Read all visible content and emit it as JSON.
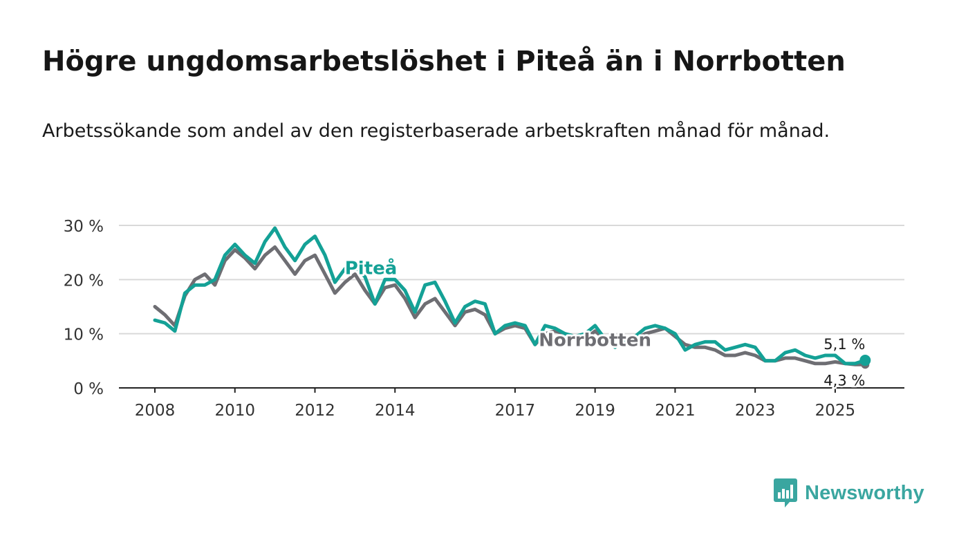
{
  "title": "Högre ungdomsarbetslöshet i Piteå än i Norrbotten",
  "subtitle": "Arbetssökande som andel av den registerbaserade arbetskraften månad för månad.",
  "brand": {
    "name": "Newsworthy",
    "color": "#3aa6a0"
  },
  "chart_data": {
    "type": "line",
    "title": "Högre ungdomsarbetslöshet i Piteå än i Norrbotten",
    "subtitle": "Arbetssökande som andel av den registerbaserade arbetskraften månad för månad.",
    "xlabel": "",
    "ylabel": "",
    "ylim": [
      0,
      30
    ],
    "xlim": [
      2008,
      2025.9
    ],
    "grid": true,
    "y_ticks": [
      0,
      10,
      20,
      30
    ],
    "y_tick_labels": [
      "0 %",
      "10 %",
      "20 %",
      "30 %"
    ],
    "x_ticks": [
      2008,
      2010,
      2012,
      2014,
      2017,
      2019,
      2021,
      2023,
      2025
    ],
    "x_tick_labels": [
      "2008",
      "2010",
      "2012",
      "2014",
      "2017",
      "2019",
      "2021",
      "2023",
      "2025"
    ],
    "series": [
      {
        "name": "Norrbotten",
        "color": "#6e6e73",
        "x": [
          2008.0,
          2008.25,
          2008.5,
          2008.75,
          2009.0,
          2009.25,
          2009.5,
          2009.75,
          2010.0,
          2010.25,
          2010.5,
          2010.75,
          2011.0,
          2011.25,
          2011.5,
          2011.75,
          2012.0,
          2012.25,
          2012.5,
          2012.75,
          2013.0,
          2013.25,
          2013.5,
          2013.75,
          2014.0,
          2014.25,
          2014.5,
          2014.75,
          2015.0,
          2015.25,
          2015.5,
          2015.75,
          2016.0,
          2016.25,
          2016.5,
          2016.75,
          2017.0,
          2017.25,
          2017.5,
          2017.75,
          2018.0,
          2018.25,
          2018.5,
          2018.75,
          2019.0,
          2019.25,
          2019.5,
          2019.75,
          2020.0,
          2020.25,
          2020.5,
          2020.75,
          2021.0,
          2021.25,
          2021.5,
          2021.75,
          2022.0,
          2022.25,
          2022.5,
          2022.75,
          2023.0,
          2023.25,
          2023.5,
          2023.75,
          2024.0,
          2024.25,
          2024.5,
          2024.75,
          2025.0,
          2025.25,
          2025.5,
          2025.75
        ],
        "values": [
          15.0,
          13.5,
          11.5,
          17.0,
          20.0,
          21.0,
          19.0,
          23.5,
          25.5,
          24.0,
          22.0,
          24.5,
          26.0,
          23.5,
          21.0,
          23.5,
          24.5,
          21.0,
          17.5,
          19.5,
          21.0,
          18.0,
          15.5,
          18.5,
          19.0,
          16.5,
          13.0,
          15.5,
          16.5,
          14.0,
          11.5,
          14.0,
          14.5,
          13.5,
          10.0,
          11.0,
          11.5,
          11.0,
          8.0,
          10.0,
          10.5,
          10.0,
          9.5,
          9.0,
          10.5,
          9.0,
          8.0,
          8.5,
          9.0,
          10.0,
          10.5,
          11.0,
          9.5,
          8.0,
          7.5,
          7.5,
          7.0,
          6.0,
          6.0,
          6.5,
          6.0,
          5.0,
          5.0,
          5.5,
          5.5,
          5.0,
          4.5,
          4.5,
          4.8,
          4.5,
          4.3,
          4.3
        ]
      },
      {
        "name": "Piteå",
        "color": "#14a196",
        "x": [
          2008.0,
          2008.25,
          2008.5,
          2008.75,
          2009.0,
          2009.25,
          2009.5,
          2009.75,
          2010.0,
          2010.25,
          2010.5,
          2010.75,
          2011.0,
          2011.25,
          2011.5,
          2011.75,
          2012.0,
          2012.25,
          2012.5,
          2012.75,
          2013.0,
          2013.25,
          2013.5,
          2013.75,
          2014.0,
          2014.25,
          2014.5,
          2014.75,
          2015.0,
          2015.25,
          2015.5,
          2015.75,
          2016.0,
          2016.25,
          2016.5,
          2016.75,
          2017.0,
          2017.25,
          2017.5,
          2017.75,
          2018.0,
          2018.25,
          2018.5,
          2018.75,
          2019.0,
          2019.25,
          2019.5,
          2019.75,
          2020.0,
          2020.25,
          2020.5,
          2020.75,
          2021.0,
          2021.25,
          2021.5,
          2021.75,
          2022.0,
          2022.25,
          2022.5,
          2022.75,
          2023.0,
          2023.25,
          2023.5,
          2023.75,
          2024.0,
          2024.25,
          2024.5,
          2024.75,
          2025.0,
          2025.25,
          2025.5,
          2025.75
        ],
        "values": [
          12.5,
          12.0,
          10.5,
          17.5,
          19.0,
          19.0,
          20.0,
          24.5,
          26.5,
          24.5,
          23.0,
          27.0,
          29.5,
          26.0,
          23.5,
          26.5,
          28.0,
          24.5,
          19.5,
          22.0,
          22.5,
          20.5,
          15.5,
          20.0,
          20.0,
          18.0,
          14.0,
          19.0,
          19.5,
          16.0,
          12.0,
          15.0,
          16.0,
          15.5,
          10.0,
          11.5,
          12.0,
          11.5,
          8.0,
          11.5,
          11.0,
          10.0,
          9.5,
          10.0,
          11.5,
          9.0,
          7.5,
          9.0,
          9.5,
          11.0,
          11.5,
          11.0,
          10.0,
          7.0,
          8.0,
          8.5,
          8.5,
          7.0,
          7.5,
          8.0,
          7.5,
          5.0,
          5.0,
          6.5,
          7.0,
          6.0,
          5.5,
          6.0,
          6.0,
          4.5,
          4.5,
          5.1
        ]
      }
    ],
    "annotations": [
      {
        "text": "Piteå",
        "series": "Piteå",
        "x": 2013.4,
        "y": 22.3
      },
      {
        "text": "Norrbotten",
        "series": "Norrbotten",
        "x": 2019.0,
        "y": 9.0
      },
      {
        "text": "5,1 %",
        "series": "Piteå",
        "x": 2025.75,
        "y": 5.1
      },
      {
        "text": "4,3 %",
        "series": "Norrbotten",
        "x": 2025.75,
        "y": 4.3
      }
    ]
  }
}
